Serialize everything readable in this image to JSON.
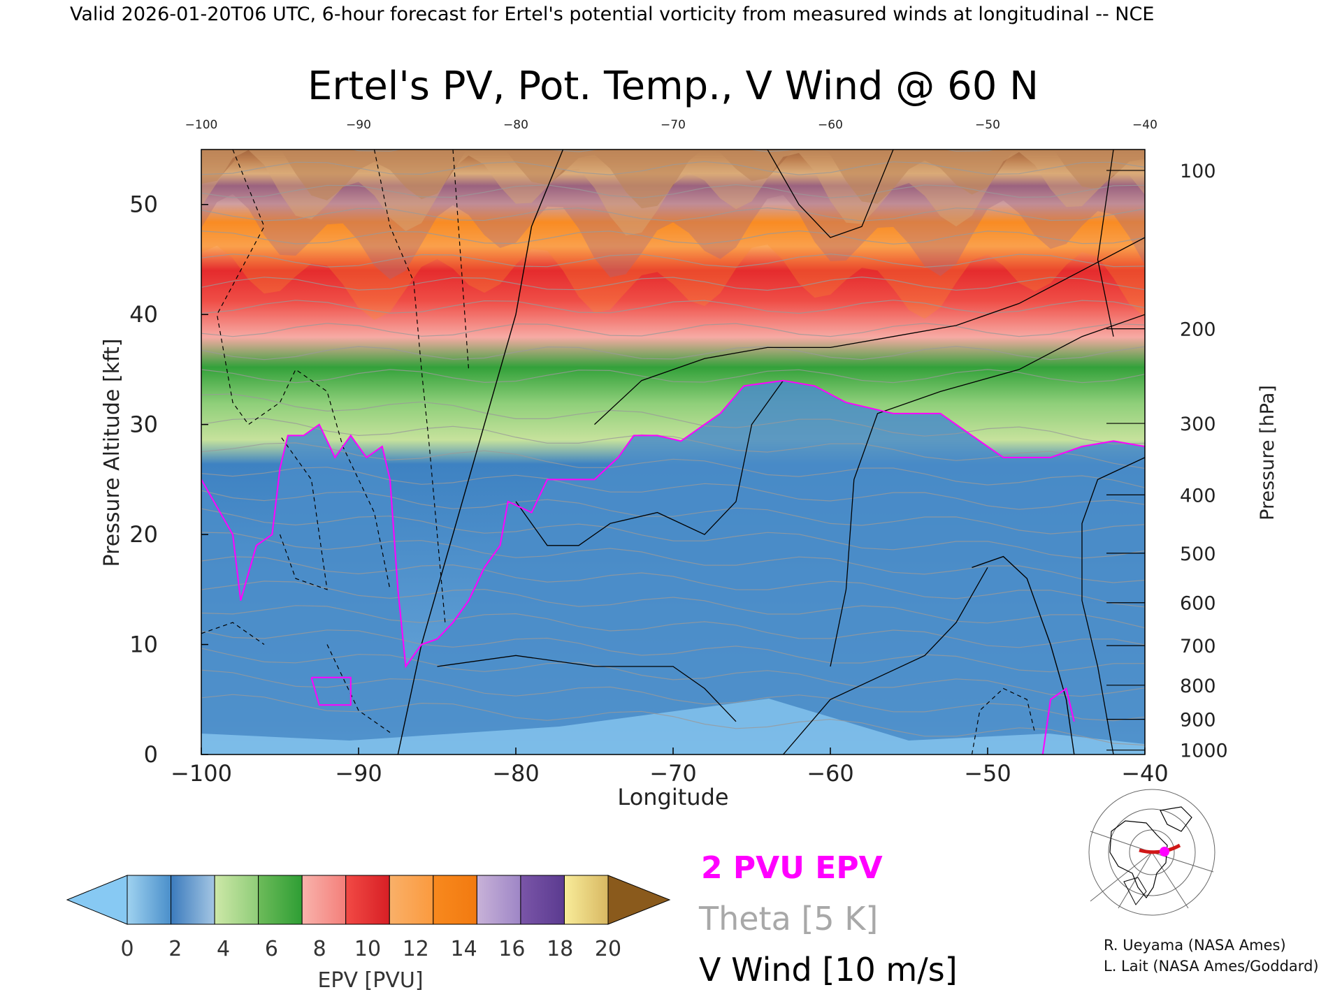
{
  "header": {
    "banner": "Valid 2026-01-20T06 UTC, 6-hour forecast for Ertel's potential vorticity from measured winds at longitudinal -- NCE",
    "title": "Ertel's PV, Pot. Temp., V Wind @ 60 N"
  },
  "chart_data": {
    "type": "heatmap",
    "title": "Ertel's PV, Pot. Temp., V Wind @ 60 N",
    "xlabel": "Longitude",
    "ylabel_left": "Pressure Altitude [kft]",
    "ylabel_right": "Pressure [hPa]",
    "xlim": [
      -100,
      -40
    ],
    "ylim": [
      0,
      55
    ],
    "x_ticks": [
      -100,
      -90,
      -80,
      -70,
      -60,
      -50,
      -40
    ],
    "x_tick_labels": [
      "−100",
      "−90",
      "−80",
      "−70",
      "−60",
      "−50",
      "−40"
    ],
    "top_tick_labels": [
      "−100",
      "−90",
      "−80",
      "−70",
      "−60",
      "−50",
      "−40"
    ],
    "y_ticks": [
      0,
      10,
      20,
      30,
      40,
      50
    ],
    "pressure_ticks": [
      {
        "hpa": 100,
        "kft": 53.1
      },
      {
        "hpa": 200,
        "kft": 38.7
      },
      {
        "hpa": 300,
        "kft": 30.1
      },
      {
        "hpa": 400,
        "kft": 23.6
      },
      {
        "hpa": 500,
        "kft": 18.3
      },
      {
        "hpa": 600,
        "kft": 13.8
      },
      {
        "hpa": 700,
        "kft": 9.9
      },
      {
        "hpa": 800,
        "kft": 6.3
      },
      {
        "hpa": 900,
        "kft": 3.2
      },
      {
        "hpa": 1000,
        "kft": 0.4
      }
    ],
    "epv_2pvu_contour_kft": [
      [
        -100,
        25
      ],
      [
        -98,
        20
      ],
      [
        -97.5,
        14
      ],
      [
        -96.5,
        19
      ],
      [
        -95.5,
        20
      ],
      [
        -95,
        26
      ],
      [
        -94.5,
        29
      ],
      [
        -93.5,
        29
      ],
      [
        -92.5,
        30
      ],
      [
        -91.5,
        27
      ],
      [
        -90.5,
        29
      ],
      [
        -89.5,
        27
      ],
      [
        -88.5,
        28
      ],
      [
        -88,
        25
      ],
      [
        -87.5,
        15
      ],
      [
        -87,
        8
      ],
      [
        -86,
        10
      ],
      [
        -85,
        10.5
      ],
      [
        -84,
        12
      ],
      [
        -83,
        14
      ],
      [
        -82,
        17
      ],
      [
        -81,
        19
      ],
      [
        -80.5,
        23
      ],
      [
        -79,
        22
      ],
      [
        -78,
        25
      ],
      [
        -77,
        25
      ],
      [
        -75,
        25
      ],
      [
        -73.5,
        27
      ],
      [
        -72.5,
        29
      ],
      [
        -71,
        29
      ],
      [
        -69.5,
        28.5
      ],
      [
        -68,
        30
      ],
      [
        -67,
        31
      ],
      [
        -65.5,
        33.5
      ],
      [
        -63,
        34
      ],
      [
        -61,
        33.5
      ],
      [
        -59,
        32
      ],
      [
        -56,
        31
      ],
      [
        -53,
        31
      ],
      [
        -51,
        29
      ],
      [
        -49,
        27
      ],
      [
        -46,
        27
      ],
      [
        -44,
        28
      ],
      [
        -42,
        28.5
      ],
      [
        -40,
        28
      ]
    ],
    "epv_bands_kft": {
      "blue_top_left": 27,
      "blue_top_right": 28,
      "green_top": 36,
      "pink_red_top": 43,
      "orange_top": 47,
      "purple_top": 51,
      "yellow_top": 53
    },
    "v_wind_zero_contour": [
      [
        -51,
        17
      ],
      [
        -49,
        18
      ],
      [
        -47.5,
        16
      ],
      [
        -46,
        10
      ],
      [
        -45,
        5
      ],
      [
        -44.5,
        0
      ]
    ],
    "v_wind_10_contour": [
      [
        -87.5,
        0
      ],
      [
        -86,
        10
      ],
      [
        -84,
        20
      ],
      [
        -82,
        30
      ],
      [
        -80,
        40
      ],
      [
        -79,
        48
      ],
      [
        -77,
        55
      ]
    ],
    "colorbar": {
      "label": "EPV [PVU]",
      "tick_labels": [
        "0",
        "2",
        "4",
        "6",
        "8",
        "10",
        "12",
        "14",
        "16",
        "18",
        "20"
      ],
      "segments": [
        [
          "#9fd2f0",
          "#4a8fca"
        ],
        [
          "#3b7bbd",
          "#a4c6e3"
        ],
        [
          "#cde8a8",
          "#8fcc78"
        ],
        [
          "#6dbb5a",
          "#2e9e34"
        ],
        [
          "#f8b3ac",
          "#f47f7a"
        ],
        [
          "#f24a45",
          "#d71f25"
        ],
        [
          "#f9b069",
          "#fb9a3e"
        ],
        [
          "#f8891e",
          "#f27a10"
        ],
        [
          "#c8b2d8",
          "#9e86c6"
        ],
        [
          "#7a55a8",
          "#5b3b90"
        ],
        [
          "#f8ec9a",
          "#d8b862"
        ]
      ],
      "under_color": "#87c9f3",
      "over_color": "#8a5a1c"
    },
    "legend": [
      {
        "label": "2 PVU EPV",
        "color": "#ff00ff"
      },
      {
        "label": "Theta [5 K]",
        "color": "#a8a8a8"
      },
      {
        "label": "V Wind [10 m/s]",
        "color": "#000000"
      }
    ]
  },
  "credits": {
    "line1": "R. Ueyama (NASA Ames)",
    "line2": "L. Lait (NASA Ames/Goddard)"
  }
}
